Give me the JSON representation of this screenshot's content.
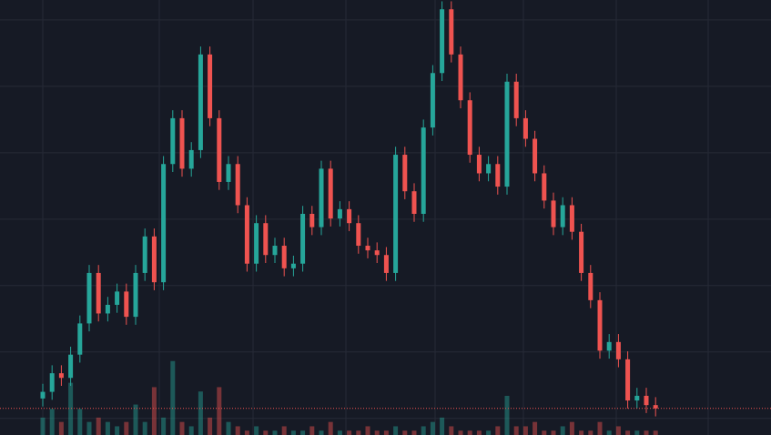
{
  "chart_data": {
    "type": "candlestick",
    "open": [
      3,
      4,
      6.8,
      6.1,
      9.6,
      14.3,
      21.9,
      15.8,
      17.1,
      19.1,
      15.3,
      21.9,
      27.4,
      20.5,
      38.3,
      45.2,
      37.6,
      40.4,
      54.8,
      45.2,
      35.6,
      38.3,
      32.1,
      23.3,
      29.4,
      24.6,
      26,
      22.6,
      23.3,
      30.8,
      28.8,
      37.6,
      30.1,
      31.5,
      29.4,
      26,
      25.3,
      24.6,
      21.9,
      39.7,
      34.2,
      30.8,
      43.8,
      52,
      61.6,
      54.8,
      47.9,
      39.7,
      36.9,
      38.3,
      34.9,
      50.7,
      45.2,
      42.1,
      36.9,
      32.8,
      28.8,
      32.1,
      28.1,
      21.9,
      17.8,
      10.2,
      11.5,
      8.9,
      2.7,
      3.4,
      2
    ],
    "high": [
      5.2,
      8,
      8,
      10.8,
      15.5,
      23.1,
      23.1,
      18.3,
      20.3,
      20.3,
      23.1,
      28.6,
      28.6,
      39.5,
      46.4,
      46.4,
      41.6,
      56,
      56,
      46.4,
      39.5,
      39.5,
      33.3,
      30.6,
      30.6,
      27.2,
      27.2,
      24.5,
      32,
      32,
      38.8,
      38.8,
      32.7,
      32.7,
      30.6,
      27.2,
      26.5,
      25.8,
      40.9,
      40.9,
      35.4,
      45,
      53.2,
      62.8,
      62.8,
      56,
      49.1,
      40.9,
      39.5,
      39.5,
      51.9,
      51.9,
      46.4,
      43.3,
      38.1,
      34,
      33.3,
      33.3,
      29.3,
      23.1,
      19,
      12.7,
      12.7,
      10.1,
      4.6,
      4.6,
      3.2
    ],
    "low": [
      1.8,
      2.8,
      4.9,
      4.9,
      8.4,
      13.1,
      14.6,
      14.6,
      15.9,
      14.1,
      14.1,
      20.7,
      19.3,
      19.3,
      37.1,
      36.4,
      36.4,
      39.2,
      44,
      34.4,
      34.4,
      30.9,
      22.1,
      22.1,
      23.4,
      23.4,
      21.4,
      21.4,
      22.1,
      27.6,
      27.6,
      28.9,
      28.9,
      28.2,
      24.8,
      24.1,
      23.4,
      20.7,
      20.7,
      33,
      29.6,
      29.6,
      42.6,
      50.8,
      53.6,
      46.7,
      38.5,
      35.7,
      35.7,
      33.7,
      33.7,
      44,
      40.9,
      35.7,
      31.6,
      27.6,
      27.6,
      26.9,
      20.7,
      16.6,
      9,
      9,
      7.7,
      1.5,
      1.5,
      0.8,
      0.3
    ],
    "close": [
      4,
      6.8,
      6.1,
      9.6,
      14.3,
      21.9,
      15.8,
      17.1,
      19.1,
      15.3,
      21.9,
      27.4,
      20.5,
      38.3,
      45.2,
      37.6,
      40.4,
      54.8,
      45.2,
      35.6,
      38.3,
      32.1,
      23.3,
      29.4,
      24.6,
      26,
      22.6,
      23.3,
      30.8,
      28.8,
      37.6,
      30.1,
      31.5,
      29.4,
      26,
      25.3,
      24.6,
      21.9,
      39.7,
      34.2,
      30.8,
      43.8,
      52,
      61.6,
      54.8,
      47.9,
      39.7,
      36.9,
      38.3,
      34.9,
      50.7,
      45.2,
      42.1,
      36.9,
      32.8,
      28.8,
      32.1,
      28.1,
      21.9,
      17.8,
      10.2,
      11.5,
      8.9,
      2.7,
      3.4,
      2,
      1.5
    ],
    "volume": [
      4,
      6,
      3,
      12,
      6,
      3,
      4,
      3,
      2,
      3,
      7,
      3,
      11,
      4,
      17,
      3,
      2,
      10,
      4,
      11,
      3,
      2,
      1,
      2,
      1,
      1,
      2,
      1,
      1,
      2,
      1,
      3,
      1,
      1,
      1,
      2,
      1,
      1,
      2,
      1,
      1,
      2,
      3,
      4,
      2,
      1,
      1,
      1,
      1,
      2,
      9,
      2,
      2,
      3,
      1,
      1,
      2,
      3,
      1,
      1,
      3,
      1,
      2,
      1,
      1,
      1,
      1
    ],
    "ylim": [
      -2.5,
      63
    ],
    "yticks": [
      0,
      10,
      20,
      30,
      40,
      50,
      60
    ],
    "y2lim": [
      0,
      100
    ],
    "grid": true,
    "up_color": "#26a69a",
    "down_color": "#ef5350",
    "last_price_line": true
  }
}
